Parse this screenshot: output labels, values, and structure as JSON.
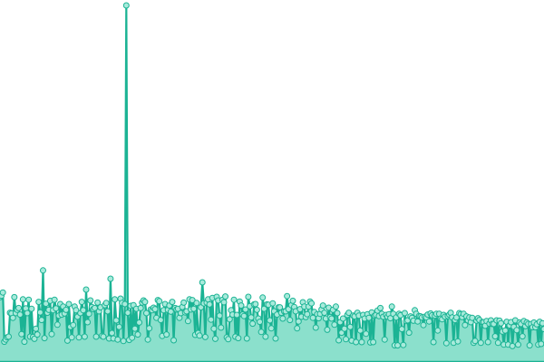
{
  "chart_data": {
    "type": "area",
    "title": "",
    "xlabel": "",
    "ylabel": "",
    "grid": false,
    "legend": "none",
    "colors": {
      "line": "#1bb394",
      "area": "#8be0cc",
      "marker_fill": "#a8eadb"
    },
    "ylim": [
      0,
      100
    ],
    "series": [
      {
        "values": [
          17.9,
          18.3,
          19.2,
          5.6,
          6.2,
          6.8,
          7.0,
          13.6,
          13.4,
          12.2,
          17.9,
          13.5,
          14.4,
          14.9,
          13.1,
          7.7,
          17.3,
          5.6,
          14.8,
          13.5,
          17.2,
          7.0,
          14.7,
          6.9,
          6.4,
          9.2,
          7.6,
          16.6,
          13.7,
          11.6,
          25.3,
          6.6,
          16.1,
          13.6,
          14.4,
          16.9,
          7.7,
          14.3,
          17.2,
          14.8,
          10.3,
          12.8,
          16.0,
          13.1,
          15.3,
          13.4,
          14.4,
          5.9,
          16.0,
          9.7,
          6.8,
          10.2,
          15.3,
          14.3,
          12.5,
          6.8,
          13.5,
          16.6,
          14.3,
          7.0,
          20.0,
          11.0,
          13.3,
          17.0,
          15.2,
          14.6,
          14.9,
          7.0,
          16.4,
          14.0,
          15.1,
          7.2,
          7.0,
          15.7,
          16.3,
          14.0,
          6.5,
          23.0,
          8.0,
          6.5,
          17.3,
          11.5,
          6.2,
          9.7,
          17.5,
          16.3,
          5.8,
          16.0,
          98.5,
          13.6,
          6.1,
          15.5,
          6.7,
          15.7,
          9.2,
          14.7,
          7.6,
          10.9,
          14.9,
          16.4,
          17.0,
          16.6,
          13.5,
          6.2,
          9.3,
          14.5,
          14.3,
          15.0,
          14.6,
          12.2,
          17.1,
          16.8,
          11.6,
          7.2,
          14.3,
          16.0,
          7.6,
          14.4,
          15.6,
          13.9,
          16.6,
          6.0,
          14.9,
          14.5,
          14.7,
          12.2,
          13.5,
          15.2,
          16.4,
          13.7,
          14.0,
          11.3,
          17.3,
          14.5,
          17.1,
          14.7,
          7.5,
          16.3,
          8.0,
          7.3,
          15.1,
          22.0,
          16.2,
          6.9,
          16.4,
          17.3,
          15.9,
          11.7,
          17.7,
          9.2,
          6.4,
          18.0,
          17.0,
          12.8,
          9.5,
          17.2,
          16.5,
          18.1,
          6.8,
          6.3,
          11.8,
          14.3,
          13.1,
          17.2,
          7.0,
          13.0,
          6.6,
          16.7,
          15.6,
          13.1,
          12.7,
          14.5,
          6.5,
          18.0,
          15.4,
          12.3,
          10.6,
          15.9,
          16.0,
          14.4,
          12.0,
          11.1,
          8.3,
          17.8,
          14.7,
          7.0,
          15.9,
          15.8,
          11.5,
          9.3,
          16.2,
          14.0,
          6.5,
          13.1,
          15.1,
          15.1,
          13.6,
          12.0,
          14.0,
          14.0,
          18.2,
          14.6,
          11.6,
          15.7,
          16.9,
          15.2,
          14.0,
          9.3,
          11.2,
          14.6,
          12.5,
          16.5,
          15.3,
          12.4,
          13.2,
          15.3,
          16.7,
          16.2,
          12.2,
          13.8,
          9.5,
          13.2,
          12.1,
          13.3,
          14.5,
          15.6,
          13.6,
          12.0,
          8.9,
          15.0,
          12.4,
          12.0,
          14.4,
          10.3,
          15.3,
          13.5,
          6.0,
          11.0,
          8.1,
          12.0,
          9.2,
          6.3,
          13.0,
          13.6,
          9.7,
          5.9,
          12.8,
          12.6,
          5.5,
          13.6,
          12.8,
          8.7,
          5.5,
          13.0,
          12.0,
          7.8,
          13.2,
          12.2,
          5.4,
          13.7,
          5.5,
          12.8,
          13.0,
          14.2,
          12.7,
          14.9,
          13.3,
          12.5,
          6.2,
          13.0,
          12.5,
          13.2,
          12.1,
          15.3,
          13.3,
          4.6,
          12.3,
          4.6,
          13.3,
          12.9,
          9.1,
          4.7,
          13.5,
          11.3,
          11.5,
          8.1,
          12.6,
          12.2,
          11.4,
          14.3,
          13.3,
          11.2,
          12.7,
          12.6,
          12.3,
          10.2,
          12.5,
          12.3,
          13.1,
          11.2,
          13.4,
          12.9,
          5.5,
          12.8,
          13.3,
          8.7,
          13.3,
          12.0,
          11.8,
          13.0,
          12.5,
          5.2,
          12.7,
          13.1,
          13.6,
          12.3,
          5.3,
          11.6,
          12.3,
          5.7,
          13.5,
          13.2,
          12.4,
          13.3,
          10.2,
          12.6,
          11.5,
          12.3,
          11.0,
          12.2,
          5.3,
          5.8,
          11.4,
          12.1,
          11.6,
          5.3,
          11.0,
          11.0,
          10.0,
          11.3,
          5.5,
          10.6,
          11.5,
          10.5,
          10.5,
          7.1,
          11.5,
          5.3,
          11.4,
          10.7,
          8.4,
          4.8,
          8.7,
          11.1,
          4.8,
          10.1,
          11.0,
          4.4,
          9.7,
          11.5,
          8.8,
          4.8,
          10.9,
          10.5,
          7.1,
          11.3,
          9.9,
          10.9,
          10.5,
          4.6,
          10.5,
          9.6,
          10.9,
          9.6,
          10.4,
          4.8,
          11.1,
          5.0,
          10.7,
          9.1
        ]
      }
    ]
  }
}
